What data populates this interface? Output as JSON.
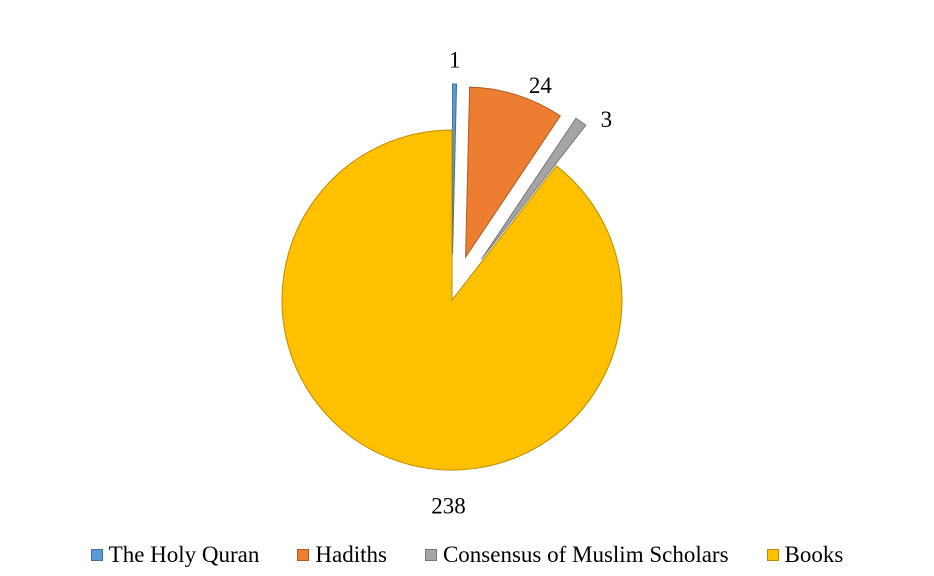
{
  "chart_data": {
    "type": "pie",
    "categories": [
      "The Holy Quran",
      "Hadiths",
      "Consensus of Muslim Scholars",
      "Books"
    ],
    "values": [
      1,
      24,
      3,
      238
    ],
    "data_labels": [
      "1",
      "24",
      "3",
      "238"
    ],
    "colors": [
      "#5B9BD5",
      "#ED7D31",
      "#A5A5A5",
      "#FFC000"
    ],
    "stroke_colors": [
      "#41719C",
      "#AE5A21",
      "#787878",
      "#BC8C00"
    ],
    "exploded": true,
    "legend_position": "bottom",
    "title": ""
  }
}
